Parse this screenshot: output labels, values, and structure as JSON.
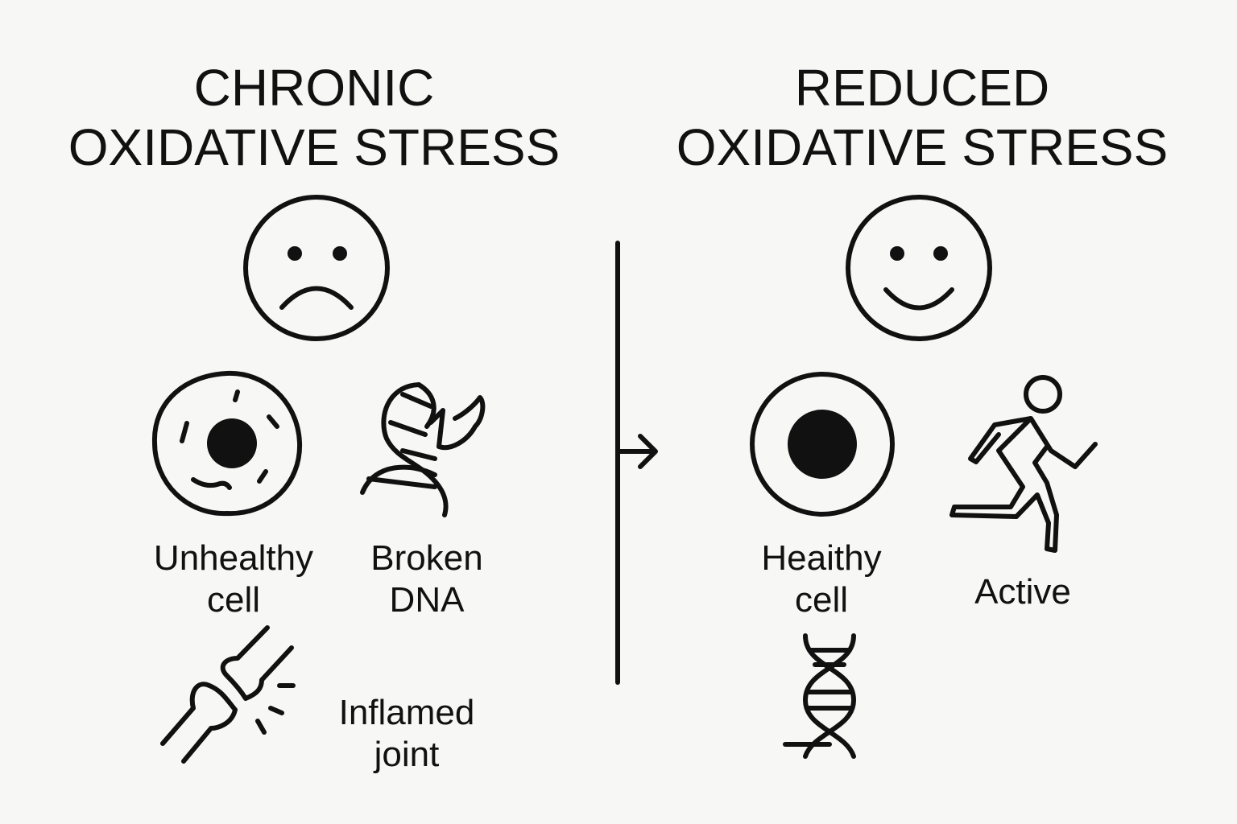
{
  "left_panel": {
    "title_line1": "CHRONIC",
    "title_line2": "OXIDATIVE STRESS",
    "items": [
      {
        "label_line1": "Unhealthy",
        "label_line2": "cell",
        "icon": "damaged-cell-icon"
      },
      {
        "label_line1": "Broken",
        "label_line2": "DNA",
        "icon": "broken-dna-icon"
      },
      {
        "label_line1": "Inflamed",
        "label_line2": "joint",
        "icon": "inflamed-joint-icon"
      }
    ],
    "face_icon": "sad-face-icon"
  },
  "right_panel": {
    "title_line1": "REDUCED",
    "title_line2": "OXIDATIVE STRESS",
    "items": [
      {
        "label_line1": "Heaithy",
        "label_line2": "cell",
        "icon": "healthy-cell-icon"
      },
      {
        "label_line1": "Active",
        "icon": "running-person-icon"
      },
      {
        "icon": "dna-helix-icon"
      }
    ],
    "face_icon": "happy-face-icon"
  },
  "divider_icon": "arrow-right-icon"
}
